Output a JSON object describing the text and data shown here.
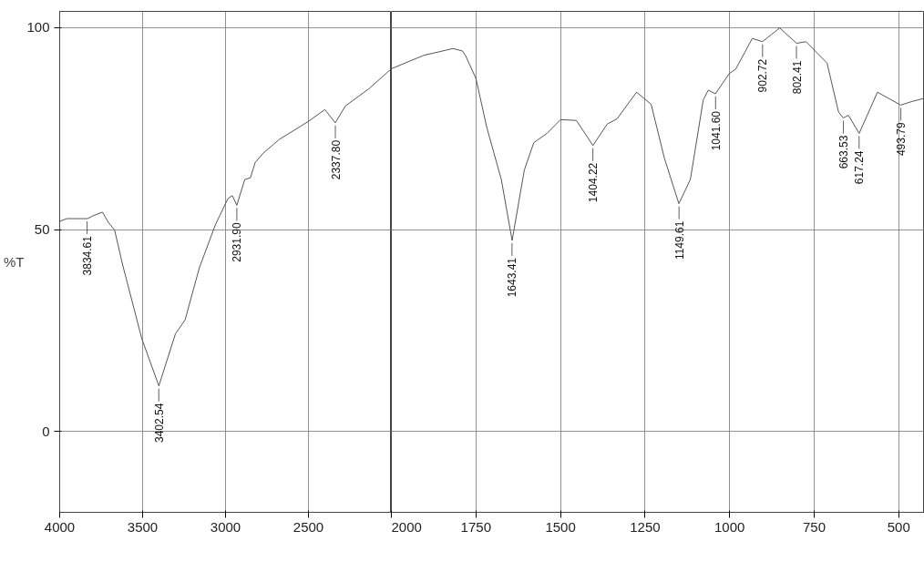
{
  "chart_data": [
    {
      "type": "line",
      "ylabel": "%T",
      "x": [
        4000,
        3958,
        3832,
        3794,
        3742,
        3707,
        3669,
        3620,
        3505,
        3402,
        3302,
        3244,
        3158,
        3062,
        2985,
        2959,
        2932,
        2884,
        2850,
        2821,
        2773,
        2676,
        2499,
        2401,
        2338,
        2277,
        2137,
        2000
      ],
      "values": [
        52.0,
        52.7,
        52.7,
        53.5,
        54.3,
        51.8,
        49.9,
        41.2,
        23.0,
        11.3,
        24.2,
        27.6,
        40.5,
        51.1,
        57.7,
        58.4,
        56.0,
        62.4,
        62.8,
        66.6,
        68.9,
        72.3,
        76.8,
        79.7,
        76.4,
        80.6,
        84.8,
        89.8
      ],
      "color": "#555555",
      "xlim": [
        4000,
        2000
      ],
      "ylim": [
        -20,
        104
      ],
      "xticks": [
        4000,
        3500,
        3000,
        2500
      ],
      "yticks": [
        0,
        50,
        100
      ],
      "grid": true,
      "marker": "none",
      "line_style": "solid",
      "annotations": [
        {
          "text": "3834.61",
          "x": 3834.61,
          "y": 52.7
        },
        {
          "text": "3402.54",
          "x": 3402.54,
          "y": 11.3
        },
        {
          "text": "2931.90",
          "x": 2931.9,
          "y": 56.0
        },
        {
          "text": "2337.80",
          "x": 2337.8,
          "y": 76.4
        }
      ]
    },
    {
      "type": "line",
      "x": [
        2000,
        1905,
        1818,
        1790,
        1781,
        1750,
        1718,
        1675,
        1643,
        1607,
        1579,
        1540,
        1500,
        1453,
        1404,
        1362,
        1333,
        1275,
        1232,
        1193,
        1150,
        1116,
        1078,
        1063,
        1042,
        1001,
        982,
        933,
        903,
        852,
        802,
        774,
        712,
        678,
        664,
        649,
        617,
        563,
        494,
        461,
        424
      ],
      "values": [
        89.8,
        93.1,
        94.8,
        94.2,
        93.1,
        87.4,
        75.3,
        62.4,
        47.3,
        64.7,
        71.5,
        73.8,
        77.2,
        77.0,
        70.8,
        76.1,
        77.4,
        84.0,
        81.0,
        67.7,
        56.4,
        62.4,
        82.1,
        84.5,
        83.6,
        88.6,
        89.7,
        97.3,
        96.5,
        99.9,
        96.1,
        96.5,
        91.2,
        79.1,
        77.6,
        78.3,
        73.8,
        84.0,
        80.8,
        81.7,
        82.5
      ],
      "color": "#555555",
      "xlim": [
        2000,
        424
      ],
      "ylim": [
        -20,
        104
      ],
      "xticks": [
        2000,
        1750,
        1500,
        1250,
        1000,
        750,
        500
      ],
      "yticks": [
        0,
        50,
        100
      ],
      "tick_labels": "x",
      "grid": true,
      "marker": "none",
      "line_style": "solid",
      "annotations": [
        {
          "text": "1643.41",
          "x": 1643.41,
          "y": 47.3
        },
        {
          "text": "1404.22",
          "x": 1404.22,
          "y": 70.8
        },
        {
          "text": "1149.61",
          "x": 1149.61,
          "y": 56.4
        },
        {
          "text": "1041.60",
          "x": 1041.6,
          "y": 83.6
        },
        {
          "text": "902.72",
          "x": 902.72,
          "y": 96.5
        },
        {
          "text": "802.41",
          "x": 802.41,
          "y": 96.1
        },
        {
          "text": "663.53",
          "x": 663.53,
          "y": 77.6
        },
        {
          "text": "617.24",
          "x": 617.24,
          "y": 73.8
        },
        {
          "text": "493.79",
          "x": 493.79,
          "y": 80.8
        }
      ]
    }
  ]
}
